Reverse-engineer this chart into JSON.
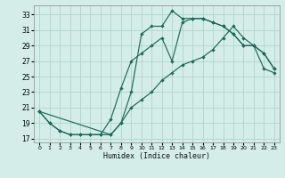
{
  "xlabel": "Humidex (Indice chaleur)",
  "bg_color": "#d4ede8",
  "grid_color": "#b0d4cd",
  "line_color": "#1a6b5a",
  "xlim": [
    -0.5,
    23.5
  ],
  "ylim": [
    16.5,
    34.2
  ],
  "xticks": [
    0,
    1,
    2,
    3,
    4,
    5,
    6,
    7,
    8,
    9,
    10,
    11,
    12,
    13,
    14,
    15,
    16,
    17,
    18,
    19,
    20,
    21,
    22,
    23
  ],
  "yticks": [
    17,
    19,
    21,
    23,
    25,
    27,
    29,
    31,
    33
  ],
  "curve1_x": [
    0,
    1,
    2,
    3,
    4,
    5,
    6,
    7,
    8,
    9,
    10,
    11,
    12,
    13,
    14,
    15,
    16,
    17,
    18,
    19,
    20,
    21,
    22,
    23
  ],
  "curve1_y": [
    20.5,
    19.0,
    18.0,
    17.5,
    17.5,
    17.5,
    17.5,
    17.5,
    19.0,
    23.0,
    30.5,
    31.5,
    31.5,
    33.5,
    32.5,
    32.5,
    32.5,
    32.0,
    31.5,
    30.5,
    29.0,
    29.0,
    28.0,
    26.0
  ],
  "curve2_x": [
    0,
    1,
    2,
    3,
    4,
    5,
    6,
    7,
    8,
    9,
    10,
    11,
    12,
    13,
    14,
    15,
    16,
    17,
    18,
    19,
    20,
    21,
    22,
    23
  ],
  "curve2_y": [
    20.5,
    19.0,
    18.0,
    17.5,
    17.5,
    17.5,
    17.5,
    19.5,
    23.5,
    27.0,
    28.0,
    29.0,
    30.0,
    27.0,
    32.0,
    32.5,
    32.5,
    32.0,
    31.5,
    30.5,
    29.0,
    29.0,
    28.0,
    26.0
  ],
  "curve3_x": [
    0,
    7,
    8,
    9,
    10,
    11,
    12,
    13,
    14,
    15,
    16,
    17,
    18,
    19,
    20,
    21,
    22,
    23
  ],
  "curve3_y": [
    20.5,
    17.5,
    19.0,
    21.0,
    22.0,
    23.0,
    24.5,
    25.5,
    26.5,
    27.0,
    27.5,
    28.5,
    30.0,
    31.5,
    30.0,
    29.0,
    26.0,
    25.5
  ]
}
